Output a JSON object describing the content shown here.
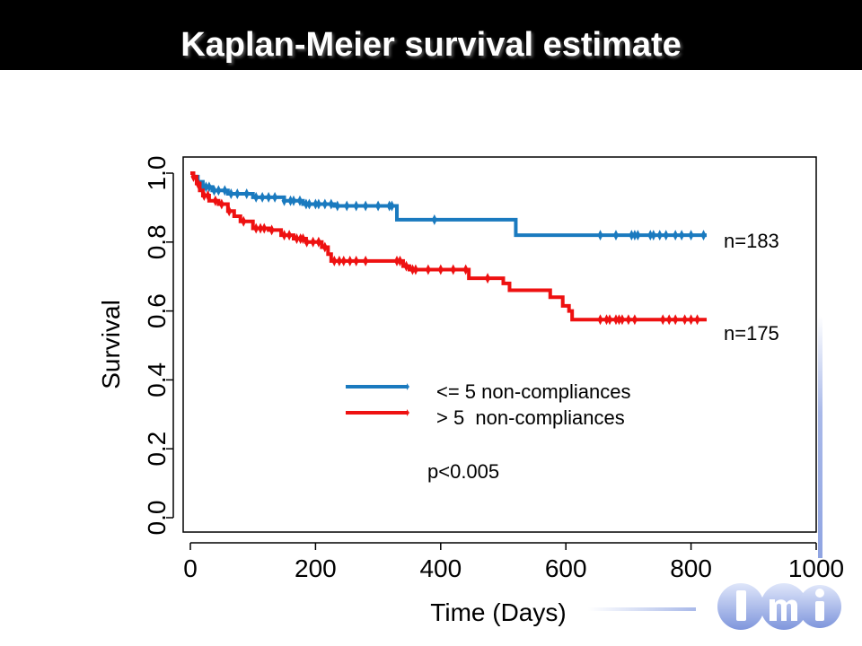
{
  "slide": {
    "title": "Kaplan-Meier survival estimate"
  },
  "chart_data": {
    "type": "line",
    "step": true,
    "xlabel": "Time (Days)",
    "ylabel": "Survival",
    "xlim": [
      0,
      1000
    ],
    "ylim": [
      0,
      1.0
    ],
    "xticks": [
      0,
      200,
      400,
      600,
      800,
      1000
    ],
    "yticks": [
      0.0,
      0.2,
      0.4,
      0.6,
      0.8,
      1.0
    ],
    "grid": false,
    "legend": {
      "placement": "center",
      "entries": [
        "<= 5 non-compliances",
        "> 5  non-compliances"
      ]
    },
    "series": [
      {
        "name": "<= 5 non-compliances",
        "n_label": "n=183",
        "color": "#1a7abf",
        "steps": [
          [
            0,
            1.0
          ],
          [
            5,
            0.99
          ],
          [
            12,
            0.975
          ],
          [
            20,
            0.96
          ],
          [
            35,
            0.95
          ],
          [
            60,
            0.94
          ],
          [
            100,
            0.93
          ],
          [
            150,
            0.92
          ],
          [
            180,
            0.91
          ],
          [
            230,
            0.905
          ],
          [
            330,
            0.865
          ],
          [
            520,
            0.82
          ],
          [
            825,
            0.82
          ]
        ],
        "censored": [
          20,
          25,
          30,
          38,
          45,
          55,
          65,
          75,
          90,
          105,
          115,
          125,
          135,
          150,
          160,
          165,
          175,
          185,
          190,
          200,
          205,
          215,
          225,
          235,
          250,
          265,
          280,
          300,
          318,
          322,
          390,
          655,
          680,
          705,
          710,
          715,
          735,
          740,
          750,
          760,
          775,
          785,
          800,
          820
        ]
      },
      {
        "name": "> 5  non-compliances",
        "n_label": "n=175",
        "color": "#ee1111",
        "steps": [
          [
            0,
            1.0
          ],
          [
            5,
            0.99
          ],
          [
            10,
            0.97
          ],
          [
            15,
            0.95
          ],
          [
            20,
            0.935
          ],
          [
            30,
            0.92
          ],
          [
            45,
            0.91
          ],
          [
            60,
            0.89
          ],
          [
            70,
            0.875
          ],
          [
            80,
            0.86
          ],
          [
            100,
            0.84
          ],
          [
            125,
            0.835
          ],
          [
            145,
            0.82
          ],
          [
            165,
            0.81
          ],
          [
            185,
            0.8
          ],
          [
            210,
            0.785
          ],
          [
            220,
            0.765
          ],
          [
            225,
            0.745
          ],
          [
            340,
            0.73
          ],
          [
            350,
            0.72
          ],
          [
            445,
            0.695
          ],
          [
            500,
            0.68
          ],
          [
            510,
            0.66
          ],
          [
            575,
            0.64
          ],
          [
            595,
            0.615
          ],
          [
            605,
            0.6
          ],
          [
            610,
            0.575
          ],
          [
            825,
            0.575
          ]
        ],
        "censored": [
          5,
          12,
          22,
          28,
          40,
          50,
          62,
          85,
          105,
          112,
          118,
          130,
          150,
          158,
          170,
          176,
          180,
          186,
          196,
          205,
          215,
          230,
          238,
          245,
          255,
          265,
          280,
          330,
          335,
          345,
          355,
          360,
          380,
          400,
          420,
          440,
          475,
          655,
          665,
          670,
          680,
          685,
          690,
          700,
          710,
          755,
          765,
          775,
          790,
          800,
          810
        ]
      }
    ],
    "annotations": [
      "n=183",
      "n=175",
      "p<0.005"
    ]
  }
}
